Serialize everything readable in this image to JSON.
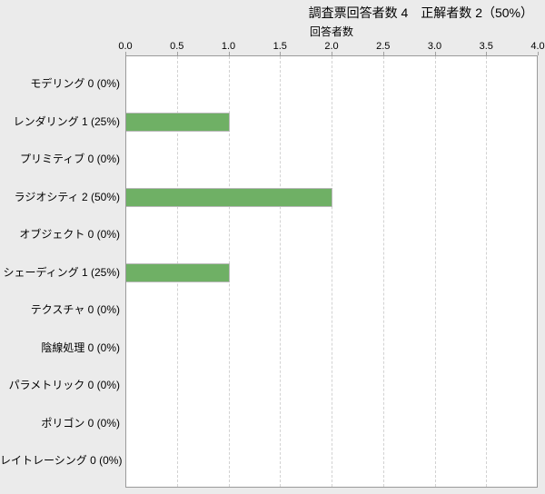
{
  "chart_data": {
    "type": "bar",
    "orientation": "horizontal",
    "title": "調査票回答者数 4　正解者数 2（50%）",
    "xlabel": "回答者数",
    "xlim": [
      0.0,
      4.0
    ],
    "xtick_labels": [
      "0.0",
      "0.5",
      "1.0",
      "1.5",
      "2.0",
      "2.5",
      "3.0",
      "3.5",
      "4.0"
    ],
    "categories": [
      "モデリング",
      "レンダリング",
      "プリミティブ",
      "ラジオシティ",
      "オブジェクト",
      "シェーディング",
      "テクスチャ",
      "陰線処理",
      "パラメトリック",
      "ポリゴン",
      "レイトレーシング"
    ],
    "values": [
      0,
      1,
      0,
      2,
      0,
      1,
      0,
      0,
      0,
      0,
      0
    ],
    "percentages": [
      "0%",
      "25%",
      "0%",
      "50%",
      "0%",
      "25%",
      "0%",
      "0%",
      "0%",
      "0%",
      "0%"
    ],
    "category_axis_labels": [
      "モデリング 0 (0%)",
      "レンダリング 1 (25%)",
      "プリミティブ 0 (0%)",
      "ラジオシティ 2 (50%)",
      "オブジェクト 0 (0%)",
      "シェーディング 1 (25%)",
      "テクスチャ 0 (0%)",
      "陰線処理 0 (0%)",
      "パラメトリック 0 (0%)",
      "ポリゴン 0 (0%)",
      "レイトレーシング 0 (0%)"
    ],
    "grid": true,
    "legend": false
  },
  "colors": {
    "background": "#ebebeb",
    "plot_background": "#ffffff",
    "plot_border": "#9b9b9b",
    "gridline": "#d2d2d2",
    "bar_fill": "#6fb065",
    "bar_border": "#b9b9b9",
    "text": "#000000"
  }
}
